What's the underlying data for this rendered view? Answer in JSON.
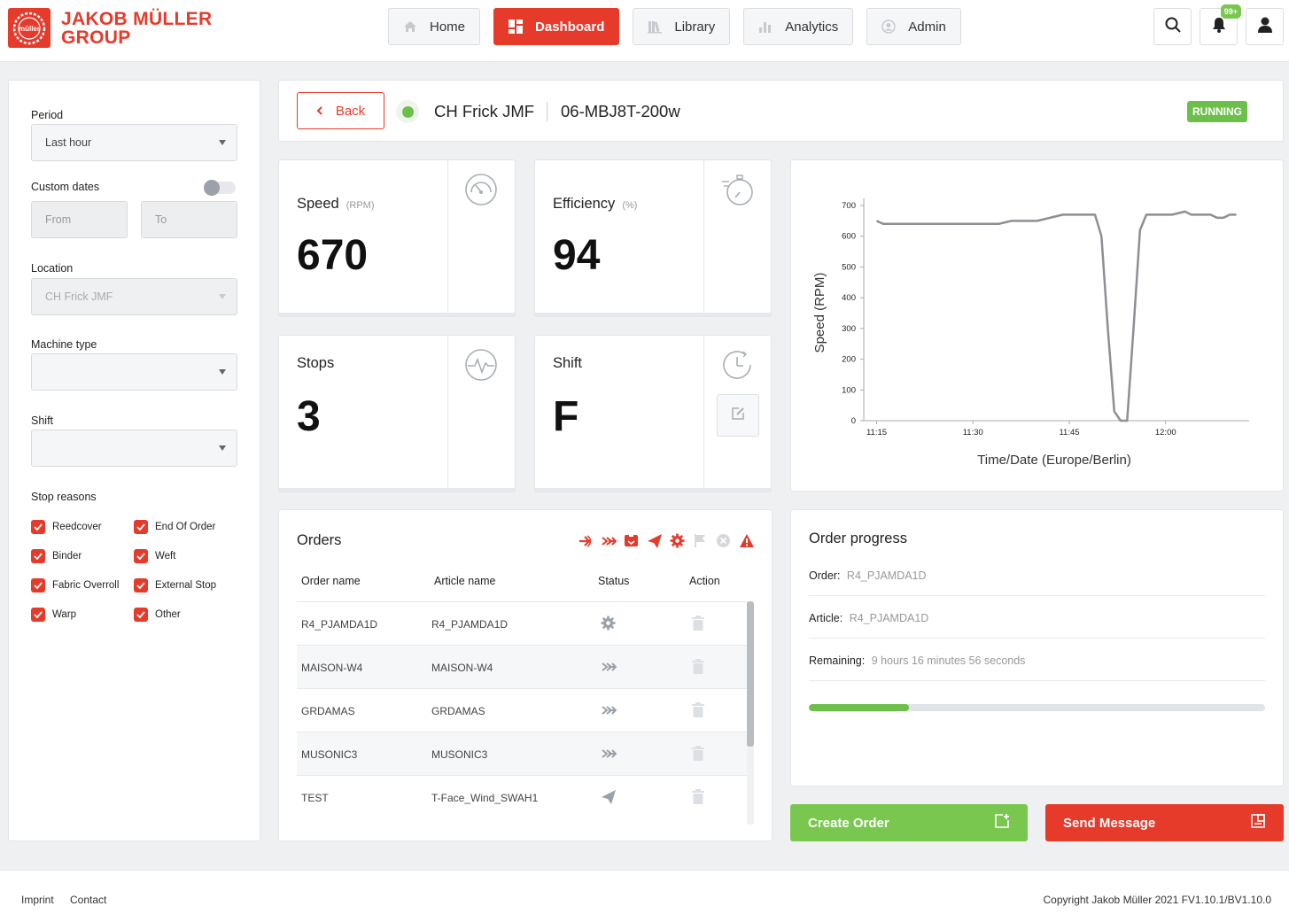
{
  "brand": {
    "line1": "JAKOB MÜLLER",
    "line2": "GROUP",
    "mark": "müller"
  },
  "nav": {
    "home": "Home",
    "dashboard": "Dashboard",
    "library": "Library",
    "analytics": "Analytics",
    "admin": "Admin"
  },
  "header": {
    "notifications_badge": "99+"
  },
  "filters": {
    "period_label": "Period",
    "period_value": "Last hour",
    "custom_dates_label": "Custom dates",
    "from_placeholder": "From",
    "to_placeholder": "To",
    "location_label": "Location",
    "location_value": "CH Frick JMF",
    "machine_type_label": "Machine type",
    "machine_type_value": "",
    "shift_label": "Shift",
    "shift_value": "",
    "stop_reasons_label": "Stop reasons",
    "stop_reasons": [
      "Reedcover",
      "End Of Order",
      "Binder",
      "Weft",
      "Fabric Overroll",
      "External Stop",
      "Warp",
      "Other"
    ]
  },
  "machine": {
    "back_label": "Back",
    "location": "CH Frick JMF",
    "machine_id": "06-MBJ8T-200w",
    "status": "RUNNING"
  },
  "kpis": {
    "speed": {
      "title": "Speed",
      "unit": "(RPM)",
      "value": "670"
    },
    "efficiency": {
      "title": "Efficiency",
      "unit": "(%)",
      "value": "94"
    },
    "stops": {
      "title": "Stops",
      "value": "3"
    },
    "shift": {
      "title": "Shift",
      "value": "F"
    }
  },
  "chart_data": {
    "type": "line",
    "xlabel": "Time/Date (Europe/Berlin)",
    "ylabel": "Speed (RPM)",
    "ylim": [
      0,
      700
    ],
    "yticks": [
      0,
      100,
      200,
      300,
      400,
      500,
      600,
      700
    ],
    "xticks": [
      "11:15",
      "11:30",
      "11:45",
      "12:00"
    ],
    "series": [
      {
        "x": [
          "11:15",
          "11:16",
          "11:20",
          "11:25",
          "11:30",
          "11:34",
          "11:36",
          "11:40",
          "11:42",
          "11:44",
          "11:46",
          "11:49",
          "11:50",
          "11:51",
          "11:52",
          "11:53",
          "11:54",
          "11:55",
          "11:56",
          "11:57",
          "11:58",
          "12:01",
          "12:03",
          "12:04",
          "12:05",
          "12:07",
          "12:08",
          "12:09",
          "12:10",
          "12:11"
        ],
        "values": [
          650,
          640,
          640,
          640,
          640,
          640,
          650,
          650,
          660,
          670,
          670,
          670,
          600,
          300,
          30,
          0,
          0,
          300,
          620,
          670,
          670,
          670,
          680,
          670,
          670,
          670,
          660,
          660,
          670,
          670
        ]
      }
    ]
  },
  "orders": {
    "title": "Orders",
    "status_filter_icons": [
      "arrow-right-icon",
      "forward-icon",
      "archive-icon",
      "send-icon",
      "gear-icon",
      "flag-icon",
      "cancel-icon",
      "warning-icon"
    ],
    "headers": {
      "name": "Order name",
      "article": "Article name",
      "status": "Status",
      "action": "Action"
    },
    "rows": [
      {
        "name": "R4_PJAMDA1D",
        "article": "R4_PJAMDA1D",
        "status_icon": "gear-icon"
      },
      {
        "name": "MAISON-W4",
        "article": "MAISON-W4",
        "status_icon": "forward-icon"
      },
      {
        "name": "GRDAMAS",
        "article": "GRDAMAS",
        "status_icon": "forward-icon"
      },
      {
        "name": "MUSONIC3",
        "article": "MUSONIC3",
        "status_icon": "forward-icon"
      },
      {
        "name": "TEST",
        "article": "T-Face_Wind_SWAH1",
        "status_icon": "send-icon"
      }
    ]
  },
  "progress": {
    "title": "Order progress",
    "order_label": "Order:",
    "order_value": "R4_PJAMDA1D",
    "article_label": "Article:",
    "article_value": "R4_PJAMDA1D",
    "remaining_label": "Remaining:",
    "remaining_value": "9 hours 16 minutes 56 seconds",
    "fraction": 0.22
  },
  "actions": {
    "create_order": "Create Order",
    "send_message": "Send Message"
  },
  "footer": {
    "imprint": "Imprint",
    "contact": "Contact",
    "copyright": "Copyright Jakob Müller 2021 FV1.10.1/BV1.10.0"
  },
  "colors": {
    "brand_red": "#e63a2b",
    "success_green": "#6cc04a",
    "action_green": "#7ac74f"
  }
}
